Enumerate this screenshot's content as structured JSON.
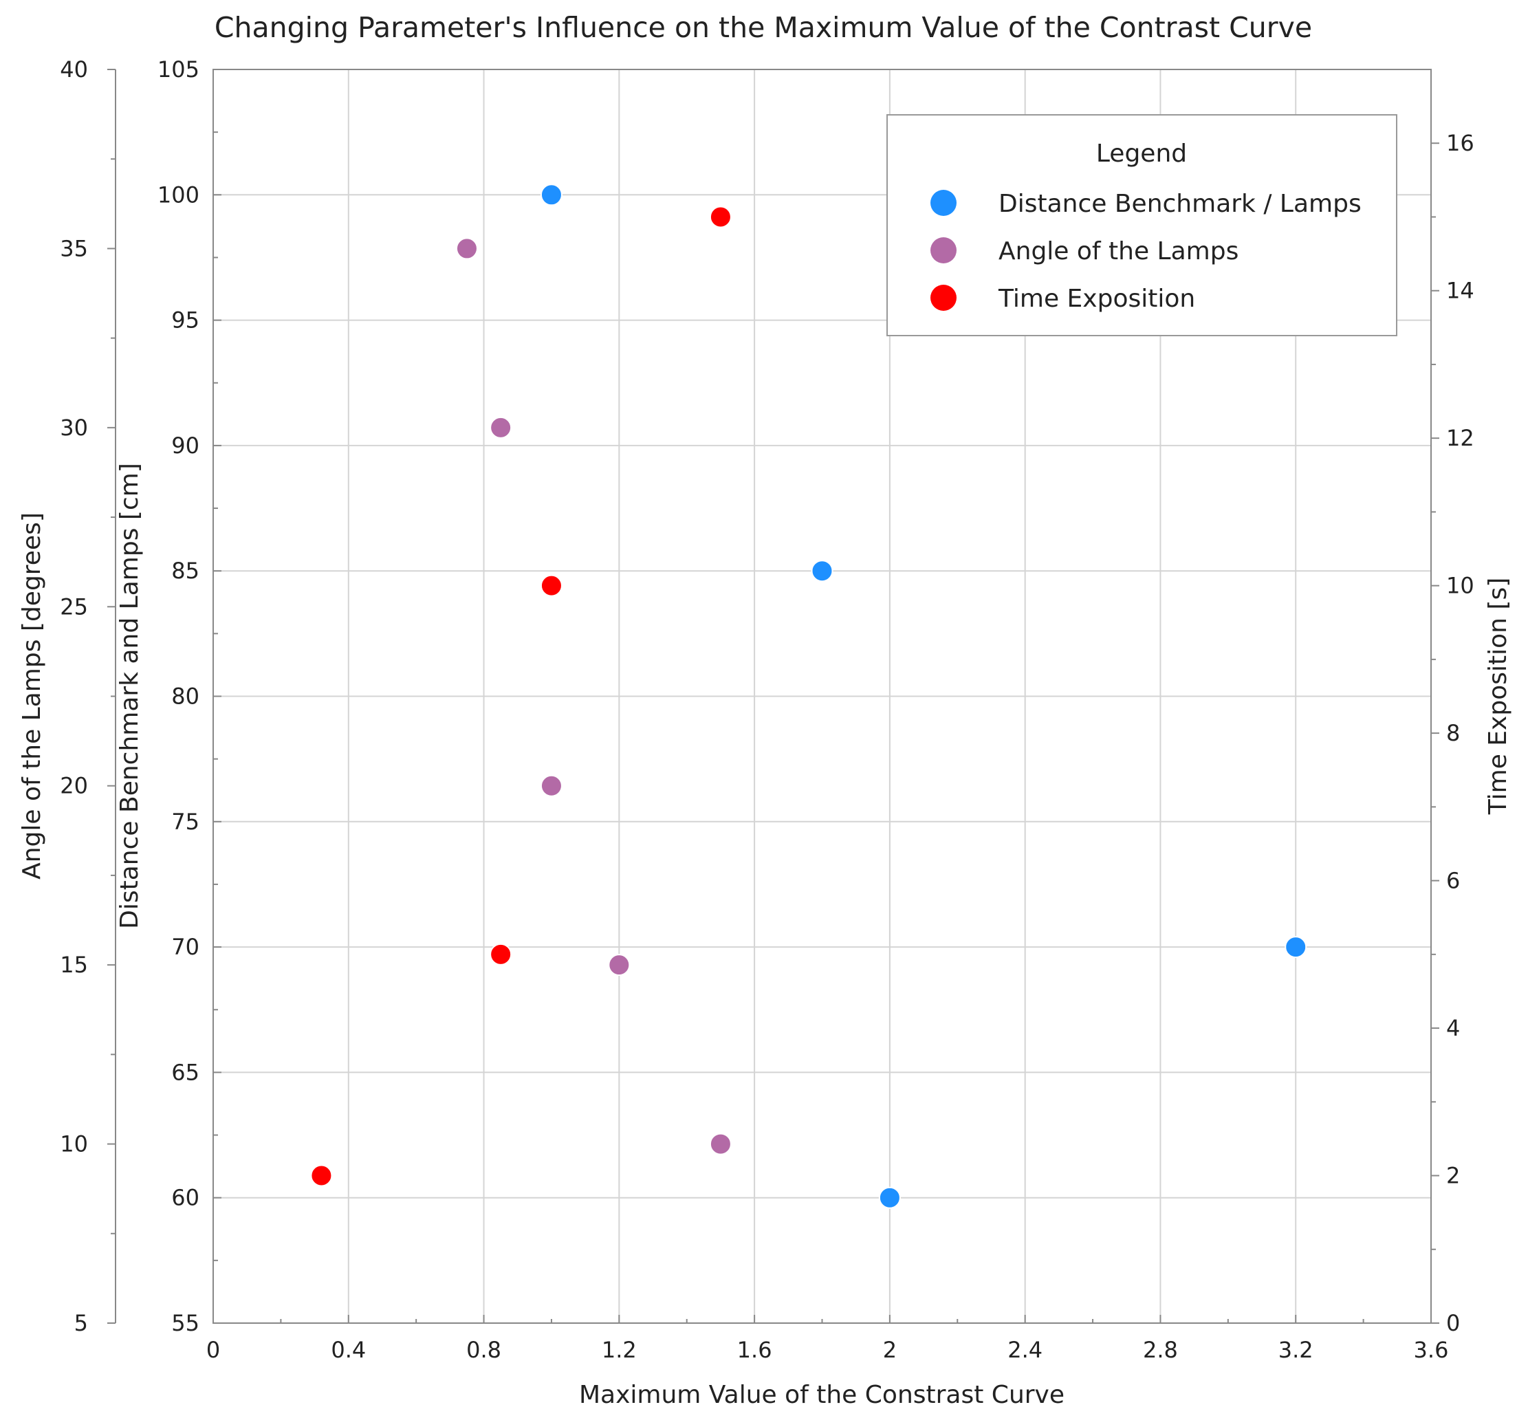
{
  "chart_data": {
    "type": "scatter",
    "title": "Changing Parameter's Influence on the Maximum Value of the Contrast Curve",
    "xlabel": "Maximum Value of the Constrast Curve",
    "xlim": [
      0,
      3.6
    ],
    "x_ticks": [
      "0",
      "0.4",
      "0.8",
      "1.2",
      "1.6",
      "2",
      "2.4",
      "2.8",
      "3.2",
      "3.6"
    ],
    "axes": {
      "angle": {
        "label": "Angle of the Lamps [degrees]",
        "range": [
          5,
          40
        ],
        "ticks": [
          "5",
          "10",
          "15",
          "20",
          "25",
          "30",
          "35",
          "40"
        ]
      },
      "distance": {
        "label": "Distance Benchmark and Lamps [cm]",
        "range": [
          55,
          105
        ],
        "ticks": [
          "55",
          "60",
          "65",
          "70",
          "75",
          "80",
          "85",
          "90",
          "95",
          "100",
          "105"
        ]
      },
      "time": {
        "label": "Time Exposition [s]",
        "range": [
          0,
          17
        ],
        "ticks": [
          "0",
          "2",
          "4",
          "6",
          "8",
          "10",
          "12",
          "14",
          "16"
        ]
      }
    },
    "grid": true,
    "legend": {
      "title": "Legend",
      "position": "top-right"
    },
    "series": [
      {
        "name": "Distance Benchmark / Lamps",
        "axis": "distance",
        "color": "#1e90ff",
        "points": [
          {
            "x": 1.0,
            "y": 100
          },
          {
            "x": 1.8,
            "y": 85
          },
          {
            "x": 3.2,
            "y": 70
          },
          {
            "x": 2.0,
            "y": 60
          }
        ]
      },
      {
        "name": "Angle of the Lamps",
        "axis": "angle",
        "color": "#b36aa6",
        "points": [
          {
            "x": 0.75,
            "y": 35
          },
          {
            "x": 0.85,
            "y": 30
          },
          {
            "x": 1.0,
            "y": 20
          },
          {
            "x": 1.2,
            "y": 15
          },
          {
            "x": 1.5,
            "y": 10
          }
        ]
      },
      {
        "name": "Time Exposition",
        "axis": "time",
        "color": "#ff0000",
        "points": [
          {
            "x": 1.5,
            "y": 15
          },
          {
            "x": 1.0,
            "y": 10
          },
          {
            "x": 0.85,
            "y": 5
          },
          {
            "x": 0.32,
            "y": 2
          }
        ]
      }
    ]
  }
}
